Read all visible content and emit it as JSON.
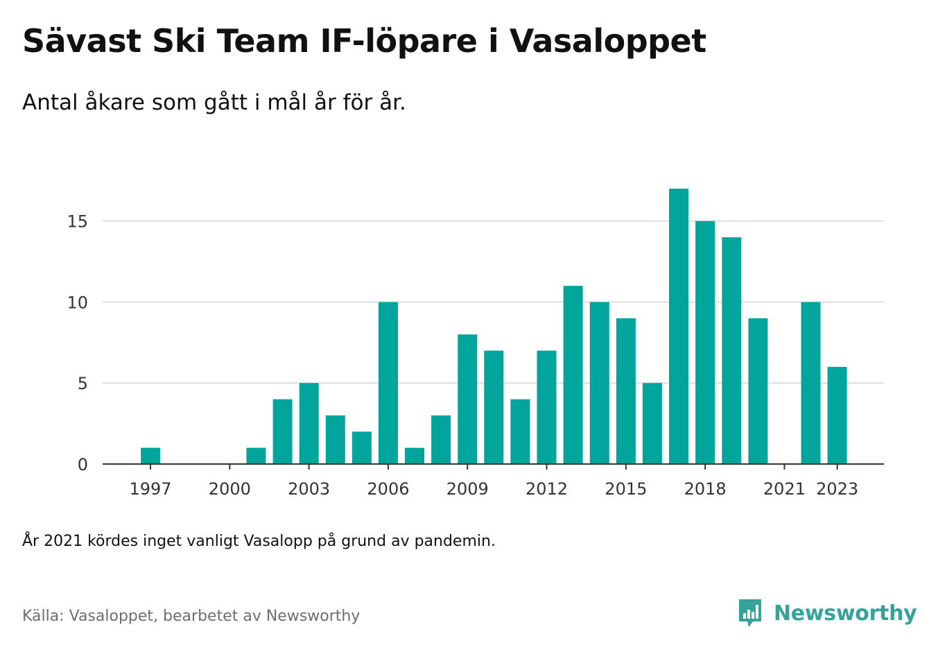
{
  "header": {
    "title": "Sävast Ski Team IF-löpare i Vasaloppet",
    "subtitle": "Antal åkare som gått i mål år för år."
  },
  "footer": {
    "note": "År 2021 kördes inget vanligt Vasalopp på grund av pandemin.",
    "source": "Källa: Vasaloppet, bearbetet av Newsworthy",
    "brand": "Newsworthy",
    "brand_icon": "newsworthy-logo-icon"
  },
  "colors": {
    "bar": "#02a59b",
    "grid": "#dddddd",
    "axis": "#333333",
    "brand": "#35a39a"
  },
  "chart_data": {
    "type": "bar",
    "x": [
      1997,
      1998,
      1999,
      2000,
      2001,
      2002,
      2003,
      2004,
      2005,
      2006,
      2007,
      2008,
      2009,
      2010,
      2011,
      2012,
      2013,
      2014,
      2015,
      2016,
      2017,
      2018,
      2019,
      2020,
      2021,
      2022,
      2023
    ],
    "values": [
      1,
      0,
      0,
      0,
      1,
      4,
      5,
      3,
      2,
      10,
      1,
      3,
      8,
      7,
      4,
      7,
      11,
      10,
      9,
      5,
      17,
      15,
      14,
      9,
      0,
      10,
      6
    ],
    "x_ticks": [
      "1997",
      "2000",
      "2003",
      "2006",
      "2009",
      "2012",
      "2015",
      "2018",
      "2021",
      "2023"
    ],
    "y_ticks": [
      "0",
      "5",
      "10",
      "15"
    ],
    "ylim": [
      0,
      17
    ],
    "grid": true,
    "legend": "none"
  }
}
